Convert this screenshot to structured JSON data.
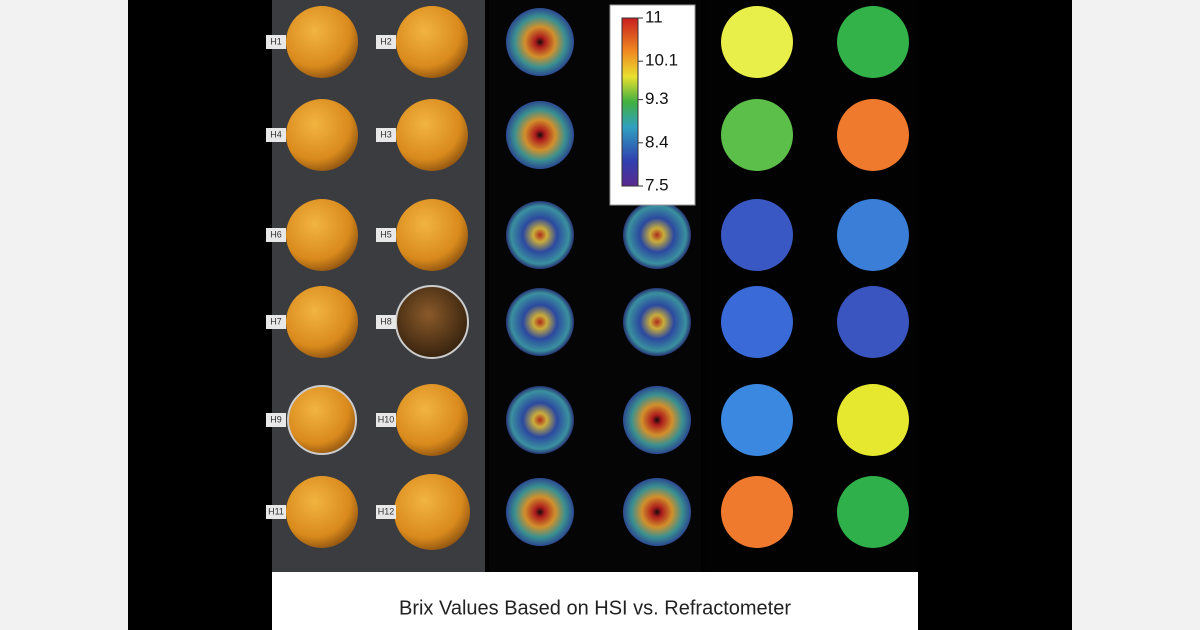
{
  "caption": "Brix Values Based on HSI vs. Refractometer",
  "colorbar": {
    "ticks": [
      11,
      10.1,
      9.3,
      8.4,
      7.5
    ]
  },
  "fruit_labels": [
    [
      "H1",
      "H2"
    ],
    [
      "H4",
      "H3"
    ],
    [
      "H6",
      "H5"
    ],
    [
      "H7",
      "H8"
    ],
    [
      "H9",
      "H10"
    ],
    [
      "H11",
      "H12"
    ]
  ]
}
